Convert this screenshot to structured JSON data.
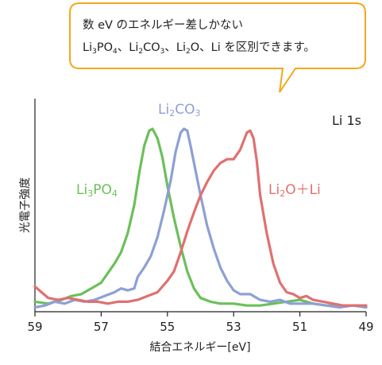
{
  "callout": {
    "line1": "数 eV のエネルギー差しかない",
    "line2_parts": [
      {
        "t": "Li"
      },
      {
        "t": "3",
        "sub": true
      },
      {
        "t": "PO"
      },
      {
        "t": "4",
        "sub": true
      },
      {
        "t": "、Li"
      },
      {
        "t": "2",
        "sub": true
      },
      {
        "t": "CO"
      },
      {
        "t": "3",
        "sub": true
      },
      {
        "t": "、Li"
      },
      {
        "t": "2",
        "sub": true
      },
      {
        "t": "O、Li を区別できます。"
      }
    ],
    "border_color": "#f2a81d"
  },
  "chart_data": {
    "type": "line",
    "xlabel": "結合エネルギー[eV]",
    "ylabel": "光電子強度",
    "xlim": [
      59,
      49
    ],
    "ylim": [
      0,
      1
    ],
    "xticks": [
      59,
      57,
      55,
      53,
      51,
      49
    ],
    "panel_label": "Li 1s",
    "series": [
      {
        "name": "Li3PO4",
        "label_parts": [
          {
            "t": "Li"
          },
          {
            "t": "3",
            "sub": true
          },
          {
            "t": "PO"
          },
          {
            "t": "4",
            "sub": true
          }
        ],
        "color": "#6cbf5a",
        "points": [
          [
            59,
            0.04
          ],
          [
            58.6,
            0.03
          ],
          [
            58.2,
            0.05
          ],
          [
            57.9,
            0.07
          ],
          [
            57.6,
            0.08
          ],
          [
            57.3,
            0.11
          ],
          [
            57,
            0.14
          ],
          [
            56.8,
            0.19
          ],
          [
            56.6,
            0.24
          ],
          [
            56.4,
            0.3
          ],
          [
            56.2,
            0.4
          ],
          [
            56,
            0.55
          ],
          [
            55.85,
            0.72
          ],
          [
            55.7,
            0.86
          ],
          [
            55.55,
            0.94
          ],
          [
            55.45,
            0.95
          ],
          [
            55.3,
            0.9
          ],
          [
            55.15,
            0.8
          ],
          [
            55,
            0.65
          ],
          [
            54.8,
            0.48
          ],
          [
            54.6,
            0.33
          ],
          [
            54.4,
            0.2
          ],
          [
            54.2,
            0.11
          ],
          [
            54,
            0.06
          ],
          [
            53.7,
            0.04
          ],
          [
            53.4,
            0.03
          ],
          [
            53,
            0.03
          ],
          [
            52.6,
            0.02
          ],
          [
            52.2,
            0.02
          ],
          [
            51.8,
            0.03
          ],
          [
            51.4,
            0.04
          ],
          [
            51,
            0.05
          ],
          [
            50.6,
            0.03
          ],
          [
            50.2,
            0.02
          ],
          [
            49.8,
            0.02
          ],
          [
            49.4,
            0.02
          ],
          [
            49,
            0.02
          ]
        ]
      },
      {
        "name": "Li2CO3",
        "label_parts": [
          {
            "t": "Li"
          },
          {
            "t": "2",
            "sub": true
          },
          {
            "t": "CO"
          },
          {
            "t": "3",
            "sub": true
          }
        ],
        "color": "#8da0d4",
        "points": [
          [
            59,
            0.01
          ],
          [
            58.7,
            0.02
          ],
          [
            58.4,
            0.04
          ],
          [
            58.1,
            0.03
          ],
          [
            57.8,
            0.05
          ],
          [
            57.5,
            0.04
          ],
          [
            57.2,
            0.05
          ],
          [
            56.9,
            0.07
          ],
          [
            56.6,
            0.09
          ],
          [
            56.4,
            0.11
          ],
          [
            56.2,
            0.1
          ],
          [
            56,
            0.11
          ],
          [
            55.9,
            0.17
          ],
          [
            55.7,
            0.22
          ],
          [
            55.5,
            0.28
          ],
          [
            55.3,
            0.38
          ],
          [
            55.1,
            0.52
          ],
          [
            54.9,
            0.68
          ],
          [
            54.75,
            0.83
          ],
          [
            54.6,
            0.93
          ],
          [
            54.5,
            0.95
          ],
          [
            54.4,
            0.94
          ],
          [
            54.3,
            0.86
          ],
          [
            54.15,
            0.73
          ],
          [
            54,
            0.6
          ],
          [
            53.8,
            0.44
          ],
          [
            53.6,
            0.32
          ],
          [
            53.4,
            0.22
          ],
          [
            53.2,
            0.15
          ],
          [
            53,
            0.1
          ],
          [
            52.8,
            0.08
          ],
          [
            52.5,
            0.08
          ],
          [
            52.2,
            0.05
          ],
          [
            51.9,
            0.04
          ],
          [
            51.6,
            0.05
          ],
          [
            51.3,
            0.03
          ],
          [
            51,
            0.03
          ],
          [
            50.6,
            0.03
          ],
          [
            50.2,
            0.02
          ],
          [
            49.8,
            0.01
          ],
          [
            49.4,
            0.02
          ],
          [
            49,
            0.01
          ]
        ]
      },
      {
        "name": "Li2O + Li",
        "label_parts": [
          {
            "t": "Li"
          },
          {
            "t": "2",
            "sub": true
          },
          {
            "t": "O＋Li"
          }
        ],
        "color": "#e07070",
        "points": [
          [
            59,
            0.12
          ],
          [
            58.8,
            0.09
          ],
          [
            58.6,
            0.06
          ],
          [
            58.3,
            0.05
          ],
          [
            58,
            0.06
          ],
          [
            57.7,
            0.05
          ],
          [
            57.4,
            0.04
          ],
          [
            57.1,
            0.04
          ],
          [
            56.8,
            0.03
          ],
          [
            56.5,
            0.04
          ],
          [
            56.2,
            0.04
          ],
          [
            55.9,
            0.05
          ],
          [
            55.6,
            0.07
          ],
          [
            55.3,
            0.09
          ],
          [
            55,
            0.15
          ],
          [
            54.8,
            0.2
          ],
          [
            54.6,
            0.3
          ],
          [
            54.4,
            0.41
          ],
          [
            54.2,
            0.51
          ],
          [
            54,
            0.6
          ],
          [
            53.8,
            0.67
          ],
          [
            53.6,
            0.73
          ],
          [
            53.4,
            0.77
          ],
          [
            53.2,
            0.79
          ],
          [
            53,
            0.79
          ],
          [
            52.8,
            0.84
          ],
          [
            52.6,
            0.93
          ],
          [
            52.5,
            0.94
          ],
          [
            52.4,
            0.9
          ],
          [
            52.3,
            0.78
          ],
          [
            52.2,
            0.6
          ],
          [
            52,
            0.4
          ],
          [
            51.8,
            0.24
          ],
          [
            51.6,
            0.14
          ],
          [
            51.4,
            0.09
          ],
          [
            51.2,
            0.08
          ],
          [
            51,
            0.06
          ],
          [
            50.8,
            0.07
          ],
          [
            50.6,
            0.05
          ],
          [
            50.3,
            0.04
          ],
          [
            50,
            0.03
          ],
          [
            49.7,
            0.02
          ],
          [
            49.4,
            0.02
          ],
          [
            49,
            0.02
          ]
        ]
      }
    ]
  }
}
